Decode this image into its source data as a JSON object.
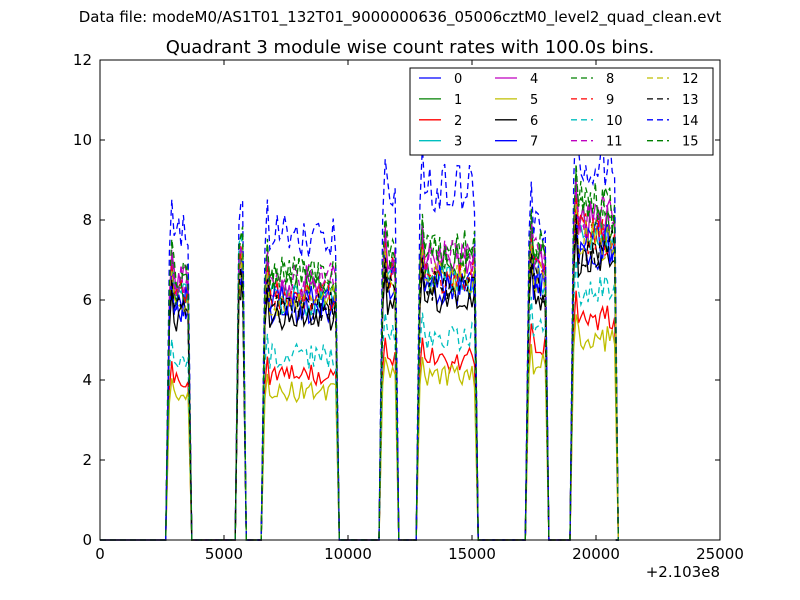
{
  "suptitle": "Data file: modeM0/AS1T01_132T01_9000000636_05006cztM0_level2_quad_clean.evt",
  "chart_data": {
    "type": "line",
    "title": "Quadrant 3 module wise count rates with 100.0s bins.",
    "xlabel": "",
    "ylabel": "",
    "x_offset_label": "+2.103e8",
    "xlim": [
      0,
      25000
    ],
    "ylim": [
      0,
      12
    ],
    "x_ticks": [
      0,
      5000,
      10000,
      15000,
      20000,
      25000
    ],
    "y_ticks": [
      0,
      2,
      4,
      6,
      8,
      10,
      12
    ],
    "grid": false,
    "legend_position": "top-right",
    "legend_columns": 4,
    "segments": [
      {
        "x_start": 2800,
        "x_end": 3550,
        "levels": {
          "s": 6.0,
          "l": 3.8,
          "h": 7.6
        }
      },
      {
        "x_start": 5600,
        "x_end": 5750,
        "levels": {
          "s": 6.9,
          "l": 6.6,
          "h": 8.3
        }
      },
      {
        "x_start": 6650,
        "x_end": 9500,
        "levels": {
          "s": 6.0,
          "l": 3.9,
          "h": 7.6
        }
      },
      {
        "x_start": 11400,
        "x_end": 11900,
        "levels": {
          "s": 6.5,
          "l": 4.3,
          "h": 8.5
        }
      },
      {
        "x_start": 12900,
        "x_end": 15100,
        "levels": {
          "s": 6.5,
          "l": 4.3,
          "h": 8.8
        }
      },
      {
        "x_start": 17300,
        "x_end": 17950,
        "levels": {
          "s": 6.6,
          "l": 4.6,
          "h": 8.0
        }
      },
      {
        "x_start": 19100,
        "x_end": 20750,
        "levels": {
          "s": 7.5,
          "l": 5.3,
          "h": 9.5
        }
      }
    ],
    "series": [
      {
        "name": "0",
        "color": "#0000ff",
        "dash": "solid",
        "level": "s",
        "scale": 0.96
      },
      {
        "name": "1",
        "color": "#008000",
        "dash": "solid",
        "level": "s",
        "scale": 1.05
      },
      {
        "name": "2",
        "color": "#ff0000",
        "dash": "solid",
        "level": "l",
        "scale": 1.05
      },
      {
        "name": "3",
        "color": "#00bfbf",
        "dash": "solid",
        "level": "s",
        "scale": 1.0
      },
      {
        "name": "4",
        "color": "#bf00bf",
        "dash": "solid",
        "level": "s",
        "scale": 1.07
      },
      {
        "name": "5",
        "color": "#bfbf00",
        "dash": "solid",
        "level": "l",
        "scale": 0.95
      },
      {
        "name": "6",
        "color": "#000000",
        "dash": "solid",
        "level": "s",
        "scale": 0.93
      },
      {
        "name": "7",
        "color": "#0000ff",
        "dash": "solid",
        "level": "s",
        "scale": 0.99
      },
      {
        "name": "8",
        "color": "#008000",
        "dash": "dashed",
        "level": "s",
        "scale": 1.1
      },
      {
        "name": "9",
        "color": "#ff0000",
        "dash": "dashed",
        "level": "s",
        "scale": 1.02
      },
      {
        "name": "10",
        "color": "#00bfbf",
        "dash": "dashed",
        "level": "l",
        "scale": 1.18
      },
      {
        "name": "11",
        "color": "#bf00bf",
        "dash": "dashed",
        "level": "s",
        "scale": 1.08
      },
      {
        "name": "12",
        "color": "#bfbf00",
        "dash": "dashed",
        "level": "s",
        "scale": 1.0
      },
      {
        "name": "13",
        "color": "#000000",
        "dash": "dashed",
        "level": "s",
        "scale": 0.97
      },
      {
        "name": "14",
        "color": "#0000ff",
        "dash": "dashed",
        "level": "h",
        "scale": 1.0
      },
      {
        "name": "15",
        "color": "#008000",
        "dash": "dashed",
        "level": "s",
        "scale": 1.12
      }
    ]
  }
}
